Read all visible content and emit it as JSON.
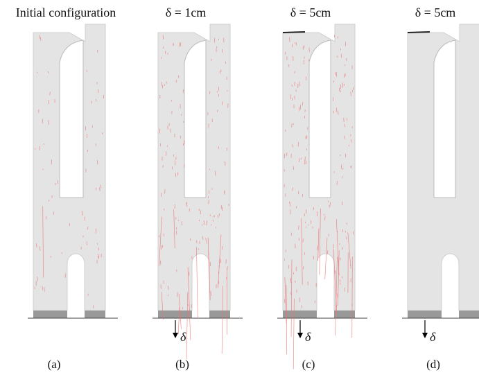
{
  "panels": [
    {
      "title": "Initial configuration",
      "caption": "(a)"
    },
    {
      "title": "δ = 1cm",
      "caption": "(b)",
      "arrow_label": "δ"
    },
    {
      "title": "δ = 5cm",
      "caption": "(c)",
      "arrow_label": "δ"
    },
    {
      "title": "δ = 5cm",
      "caption": "(d)",
      "arrow_label": "δ"
    }
  ]
}
